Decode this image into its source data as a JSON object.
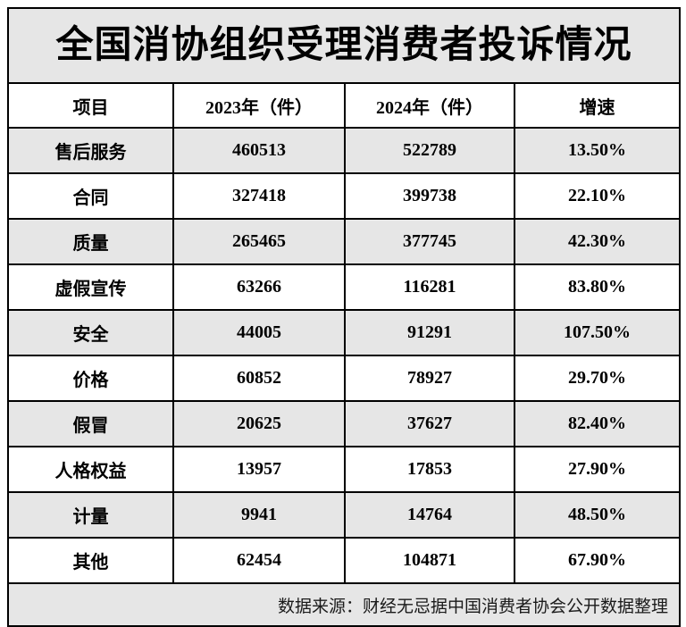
{
  "title": "全国消协组织受理消费者投诉情况",
  "table": {
    "headers": [
      "项目",
      "2023年（件）",
      "2024年（件）",
      "增速"
    ],
    "rows": [
      [
        "售后服务",
        "460513",
        "522789",
        "13.50%"
      ],
      [
        "合同",
        "327418",
        "399738",
        "22.10%"
      ],
      [
        "质量",
        "265465",
        "377745",
        "42.30%"
      ],
      [
        "虚假宣传",
        "63266",
        "116281",
        "83.80%"
      ],
      [
        "安全",
        "44005",
        "91291",
        "107.50%"
      ],
      [
        "价格",
        "60852",
        "78927",
        "29.70%"
      ],
      [
        "假冒",
        "20625",
        "37627",
        "82.40%"
      ],
      [
        "人格权益",
        "13957",
        "17853",
        "27.90%"
      ],
      [
        "计量",
        "9941",
        "14764",
        "48.50%"
      ],
      [
        "其他",
        "62454",
        "104871",
        "67.90%"
      ]
    ],
    "source_note": "数据来源：财经无忌据中国消费者协会公开数据整理"
  },
  "colors": {
    "row_shade": "#e6e6e6",
    "border": "#000000",
    "text": "#000000"
  },
  "chart_data": {
    "type": "table",
    "title": "全国消协组织受理消费者投诉情况",
    "categories": [
      "售后服务",
      "合同",
      "质量",
      "虚假宣传",
      "安全",
      "价格",
      "假冒",
      "人格权益",
      "计量",
      "其他"
    ],
    "series": [
      {
        "name": "2023年（件）",
        "values": [
          460513,
          327418,
          265465,
          63266,
          44005,
          60852,
          20625,
          13957,
          9941,
          62454
        ]
      },
      {
        "name": "2024年（件）",
        "values": [
          522789,
          399738,
          377745,
          116281,
          91291,
          78927,
          37627,
          17853,
          14764,
          104871
        ]
      },
      {
        "name": "增速",
        "values": [
          "13.50%",
          "22.10%",
          "42.30%",
          "83.80%",
          "107.50%",
          "29.70%",
          "82.40%",
          "27.90%",
          "48.50%",
          "67.90%"
        ]
      }
    ],
    "source": "数据来源：财经无忌据中国消费者协会公开数据整理"
  }
}
